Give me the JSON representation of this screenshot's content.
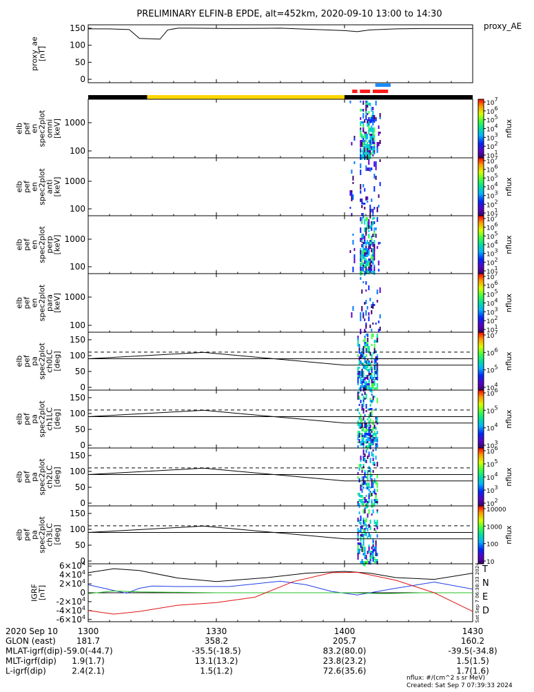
{
  "title": "PRELIMINARY ELFIN-B EPDE, alt=452km, 2020-09-10 13:00 to 14:30",
  "colors": {
    "yellow_bar": "#ffd700",
    "red_bar": "#ff1a1a",
    "blue_bar": "#1a8cff",
    "black_bar": "#000000",
    "grf_T": "#000000",
    "grf_N": "#1e3ee6",
    "grf_E": "#22c022",
    "grf_D": "#e01010"
  },
  "chart_data": [
    {
      "id": "proxy_ae",
      "type": "line",
      "ylabel": [
        "proxy_ae",
        "[nT]"
      ],
      "legend": "proxy_AE",
      "yticks": [
        "150",
        "100",
        "50",
        "0"
      ],
      "ylim": [
        -10,
        160
      ],
      "x": [
        13.0,
        13.08,
        13.16,
        13.2,
        13.28,
        13.31,
        13.35,
        13.4,
        13.55,
        13.75,
        14.0,
        14.05,
        14.1,
        14.2,
        14.3,
        14.4,
        14.5
      ],
      "y": [
        148,
        148,
        146,
        120,
        118,
        145,
        150,
        150,
        149,
        150,
        143,
        140,
        145,
        148,
        149,
        149,
        149
      ]
    },
    {
      "id": "orbit_bars",
      "type": "bar",
      "segments": [
        {
          "label": "black",
          "color": "#000000",
          "x0": 13.0,
          "x1": 13.23
        },
        {
          "label": "yellow",
          "color": "#ffd700",
          "x0": 13.23,
          "x1": 14.0
        },
        {
          "label": "black",
          "color": "#000000",
          "x0": 14.0,
          "x1": 14.5
        }
      ],
      "red": [
        [
          14.03,
          14.05
        ],
        [
          14.06,
          14.1
        ],
        [
          14.11,
          14.17
        ]
      ],
      "blue": [
        [
          14.12,
          14.18
        ]
      ]
    },
    {
      "id": "en_omni",
      "type": "heatmap",
      "ylabel": [
        "elb",
        "pef",
        "en",
        "spec2plot",
        "omni",
        "[keV]"
      ],
      "yticks": [
        "1000",
        "100"
      ],
      "cbar_ticks": [
        "10^7",
        "10^6",
        "10^5",
        "10^4",
        "10^3",
        "10^2",
        "10^1"
      ],
      "cbar_label": "nflux"
    },
    {
      "id": "en_anti",
      "type": "heatmap",
      "ylabel": [
        "elb",
        "pef",
        "en",
        "spec2plot",
        "anti",
        "[keV]"
      ],
      "yticks": [
        "1000",
        "100"
      ],
      "cbar_ticks": [
        "10^7",
        "10^6",
        "10^5",
        "10^4",
        "10^3",
        "10^2",
        "10^1"
      ],
      "cbar_label": "nflux"
    },
    {
      "id": "en_perp",
      "type": "heatmap",
      "ylabel": [
        "elb",
        "pef",
        "en",
        "spec2plot",
        "perp",
        "[keV]"
      ],
      "yticks": [
        "1000",
        "100"
      ],
      "cbar_ticks": [
        "10^7",
        "10^6",
        "10^5",
        "10^4",
        "10^3",
        "10^2",
        "10^1"
      ],
      "cbar_label": "nflux"
    },
    {
      "id": "en_para",
      "type": "heatmap",
      "ylabel": [
        "elb",
        "pef",
        "en",
        "spec2plot",
        "para",
        "[keV]"
      ],
      "yticks": [
        "1000",
        "100"
      ],
      "cbar_ticks": [
        "10^7",
        "10^6",
        "10^5",
        "10^4",
        "10^3",
        "10^2",
        "10^1"
      ],
      "cbar_label": "nflux"
    },
    {
      "id": "pa_ch0",
      "type": "heatmap",
      "ylabel": [
        "elb",
        "pef",
        "pa",
        "spec2plot",
        "ch0LC",
        "[deg]"
      ],
      "yticks": [
        "150",
        "100",
        "50",
        "0"
      ],
      "cbar_ticks": [
        "10^7",
        "10^6",
        "10^5",
        "10^4"
      ],
      "cbar_label": "nflux",
      "lc_solid": [
        [
          13.0,
          90
        ],
        [
          13.45,
          110
        ],
        [
          14.0,
          70
        ],
        [
          14.5,
          70
        ]
      ],
      "lc_dashed": 111
    },
    {
      "id": "pa_ch1",
      "type": "heatmap",
      "ylabel": [
        "elb",
        "pef",
        "pa",
        "spec2plot",
        "ch1LC",
        "[deg]"
      ],
      "yticks": [
        "150",
        "100",
        "50",
        "0"
      ],
      "cbar_ticks": [
        "10^6",
        "10^5",
        "10^4",
        "10^3"
      ],
      "cbar_label": "nflux",
      "lc_solid": [
        [
          13.0,
          90
        ],
        [
          13.45,
          110
        ],
        [
          14.0,
          70
        ],
        [
          14.5,
          70
        ]
      ],
      "lc_dashed": 111
    },
    {
      "id": "pa_ch2",
      "type": "heatmap",
      "ylabel": [
        "elb",
        "pef",
        "pa",
        "spec2plot",
        "ch2LC",
        "[deg]"
      ],
      "yticks": [
        "150",
        "100",
        "50",
        "0"
      ],
      "cbar_ticks": [
        "10^6",
        "10^5",
        "10^4",
        "10^3",
        "10^2"
      ],
      "cbar_label": "nflux",
      "lc_solid": [
        [
          13.0,
          90
        ],
        [
          13.45,
          110
        ],
        [
          14.0,
          70
        ],
        [
          14.5,
          70
        ]
      ],
      "lc_dashed": 111
    },
    {
      "id": "pa_ch3",
      "type": "heatmap",
      "ylabel": [
        "elb",
        "pef",
        "pa",
        "spec2plot",
        "ch3LC",
        "[deg]"
      ],
      "yticks": [
        "150",
        "100",
        "50",
        "0"
      ],
      "cbar_ticks": [
        "10000",
        "1000",
        "100",
        "10"
      ],
      "cbar_label": "nflux",
      "lc_solid": [
        [
          13.0,
          90
        ],
        [
          13.45,
          110
        ],
        [
          14.0,
          70
        ],
        [
          14.5,
          70
        ]
      ],
      "lc_dashed": 111
    },
    {
      "id": "igrf",
      "type": "line",
      "ylabel": [
        "IGRF",
        "[nT]"
      ],
      "yticks": [
        "6×10^4",
        "4×10^4",
        "2×10^4",
        "0",
        "-2×10^4",
        "-4×10^4",
        "-6×10^4"
      ],
      "ylim": [
        -65000,
        65000
      ],
      "series": [
        {
          "name": "T",
          "color": "#000000",
          "x": [
            13.0,
            13.1,
            13.2,
            13.35,
            13.5,
            13.7,
            13.85,
            14.0,
            14.1,
            14.2,
            14.35,
            14.5
          ],
          "y": [
            45000,
            54000,
            50000,
            33000,
            25000,
            34000,
            44000,
            48000,
            44000,
            34000,
            30000,
            44000
          ]
        },
        {
          "name": "N",
          "color": "#1e3ee6",
          "x": [
            13.0,
            13.1,
            13.15,
            13.2,
            13.25,
            13.35,
            13.55,
            13.75,
            13.85,
            13.95,
            14.05,
            14.2,
            14.35,
            14.5
          ],
          "y": [
            18000,
            5000,
            -1000,
            10000,
            15000,
            14000,
            14000,
            26000,
            18000,
            3000,
            -5000,
            10000,
            24000,
            8000
          ]
        },
        {
          "name": "E",
          "color": "#22c022",
          "x": [
            13.0,
            13.1,
            13.2,
            13.5,
            13.8,
            14.0,
            14.15,
            14.3,
            14.5
          ],
          "y": [
            -2000,
            4000,
            2000,
            0,
            0,
            0,
            -2000,
            0,
            0
          ]
        },
        {
          "name": "D",
          "color": "#e01010",
          "x": [
            13.0,
            13.1,
            13.2,
            13.35,
            13.5,
            13.65,
            13.8,
            13.95,
            14.05,
            14.2,
            14.35,
            14.5
          ],
          "y": [
            -40000,
            -48000,
            -42000,
            -28000,
            -22000,
            -10000,
            25000,
            45000,
            46000,
            28000,
            0,
            -42000
          ]
        }
      ],
      "legend": [
        "T",
        "N",
        "E",
        "D"
      ],
      "timestamp": "Sat Sep  7 06:38:33 2024"
    }
  ],
  "bottom": {
    "date": "2020 Sep 10",
    "ticks": [
      "1300",
      "1330",
      "1400",
      "1430"
    ],
    "rows": [
      {
        "label": "GLON (east)",
        "values": [
          "181.7",
          "358.2",
          "205.7",
          "160.2"
        ]
      },
      {
        "label": "MLAT-igrf(dip)",
        "values": [
          "-59.0(-44.7)",
          "-35.5(-18.5)",
          "83.2(80.0)",
          "-39.5(-34.8)"
        ]
      },
      {
        "label": "MLT-igrf(dip)",
        "values": [
          "1.9(1.7)",
          "13.1(13.2)",
          "23.8(23.2)",
          "1.5(1.5)"
        ]
      },
      {
        "label": "L-igrf(dip)",
        "values": [
          "2.4(2.1)",
          "1.5(1.2)",
          "72.6(35.6)",
          "1.7(1.6)"
        ]
      }
    ],
    "footer1": "nflux: #/(cm^2 s sr MeV)",
    "footer2": "Created: Sat Sep  7 07:39:33 2024"
  }
}
